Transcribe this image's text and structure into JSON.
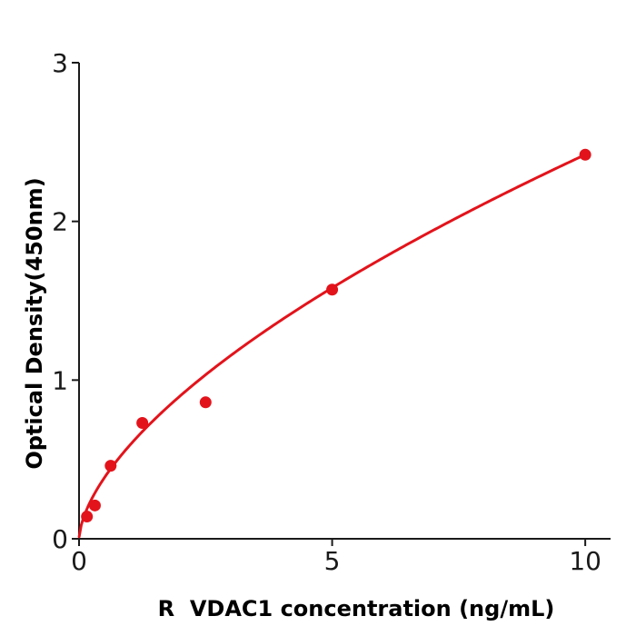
{
  "chart_data": {
    "type": "scatter",
    "title": "",
    "xlabel": "R  VDAC1 concentration (ng/mL)",
    "ylabel": "Optical Density(450nm)",
    "x": [
      0.156,
      0.313,
      0.625,
      1.25,
      2.5,
      5,
      10
    ],
    "y": [
      0.14,
      0.21,
      0.46,
      0.73,
      0.86,
      1.57,
      2.42
    ],
    "fit": {
      "type": "power",
      "a": 0.5887,
      "b": 0.614,
      "x_start": 0.002,
      "x_end": 10
    },
    "xticks": [
      0,
      5,
      10
    ],
    "yticks": [
      0,
      1,
      2,
      3
    ],
    "xlim": [
      0,
      10.5
    ],
    "ylim": [
      0,
      3
    ],
    "grid": false,
    "legend": "none",
    "marker_radius": 6.5,
    "colors": {
      "point": "#e3131b",
      "line": "#e3131b",
      "axis": "#1a1a1a",
      "text": "#000000"
    }
  }
}
